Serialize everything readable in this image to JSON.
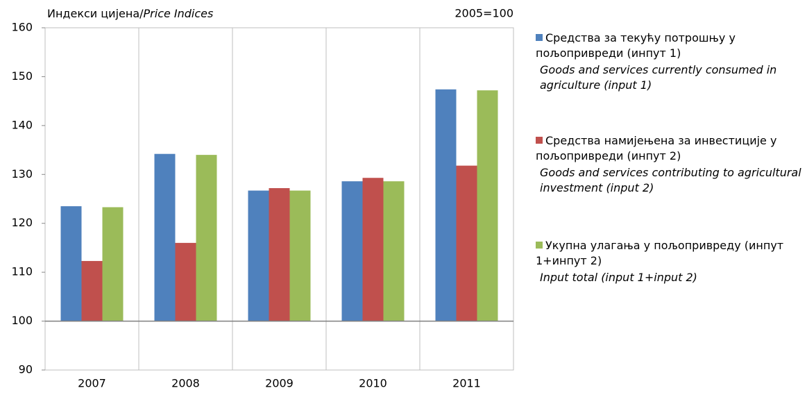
{
  "chart_data": {
    "type": "bar",
    "y_label": "Индекси цијена/",
    "y_label_en": "Price Indices",
    "note": "2005=100",
    "categories": [
      "2007",
      "2008",
      "2009",
      "2010",
      "2011"
    ],
    "series": [
      {
        "name": "Средства за текућу потрошњу у пољопривреди (инпут 1)",
        "name_en": "Goods and services currently consumed in agriculture (input 1)",
        "color": "#4f81bd",
        "values": [
          123.5,
          134.2,
          126.7,
          128.6,
          147.4
        ]
      },
      {
        "name": "Средства намијењена за инвестиције у пољопривреди (инпут 2)",
        "name_en": "Goods and services contributing to agricultural investment (input 2)",
        "color": "#c0504d",
        "values": [
          112.3,
          116.0,
          127.2,
          129.3,
          131.8
        ]
      },
      {
        "name": "Укупна улагања у пољопривреду (инпут 1+инпут 2)",
        "name_en": "Input total (input 1+input 2)",
        "color": "#9bbb59",
        "values": [
          123.3,
          134.0,
          126.7,
          128.6,
          147.2
        ]
      }
    ],
    "ylim": [
      90,
      160
    ],
    "yticks": [
      90,
      100,
      110,
      120,
      130,
      140,
      150,
      160
    ],
    "baseline": 100
  }
}
